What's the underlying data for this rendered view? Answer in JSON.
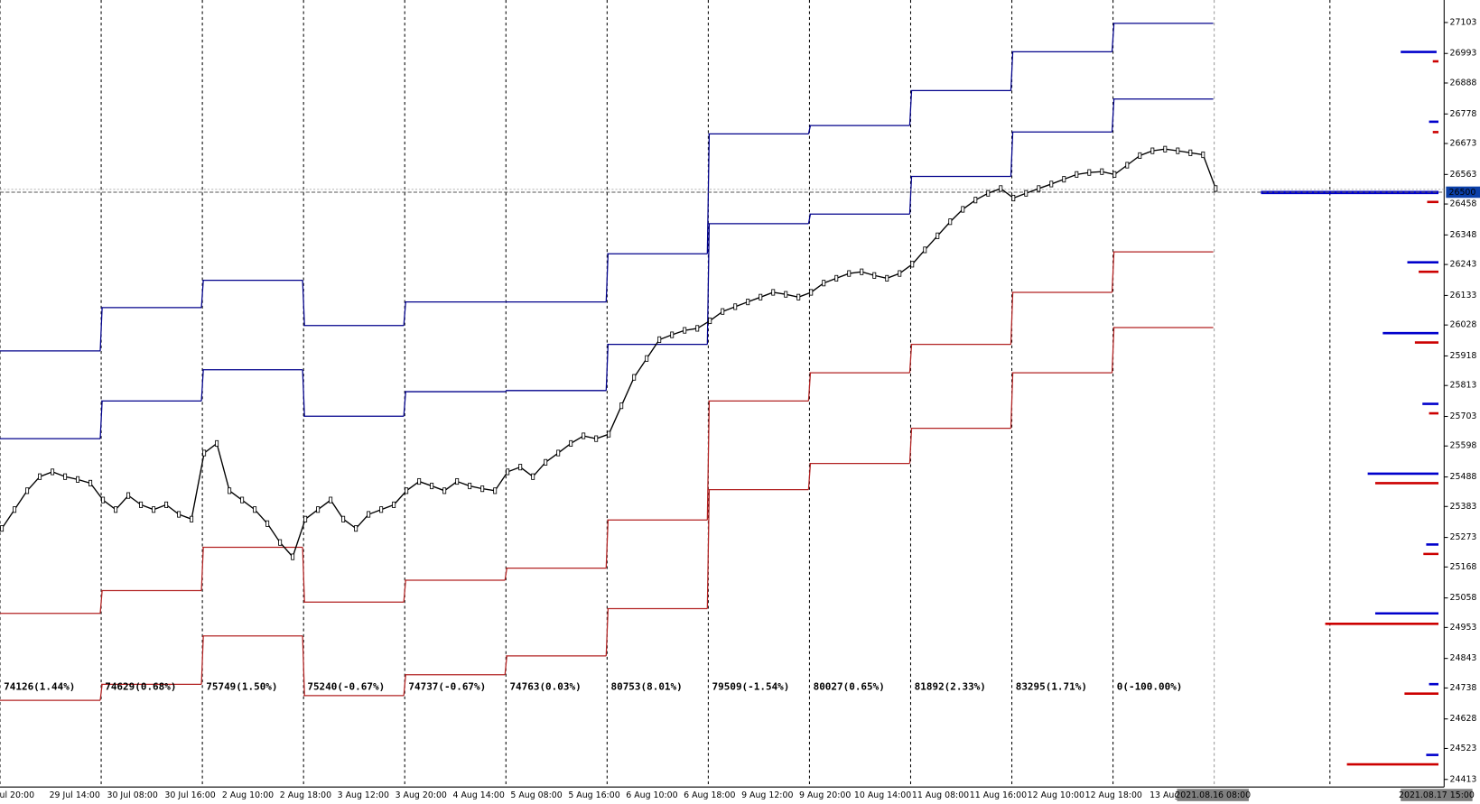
{
  "chart_data": {
    "type": "line",
    "ylim": [
      24386,
      27183
    ],
    "yticks": [
      27103,
      26993,
      26888,
      26778,
      26673,
      26563,
      26458,
      26348,
      26243,
      26133,
      26028,
      25918,
      25813,
      25703,
      25598,
      25488,
      25383,
      25273,
      25168,
      25058,
      24953,
      24843,
      24738,
      24628,
      24523,
      24413
    ],
    "current_price": 26500,
    "price_color": "#000000",
    "upper_color": "#00008b",
    "lower_color": "#b22222",
    "x_labels": [
      "ul 20:00",
      "29 Jul 14:00",
      "30 Jul 08:00",
      "30 Jul 16:00",
      "2 Aug 10:00",
      "2 Aug 18:00",
      "3 Aug 12:00",
      "3 Aug 20:00",
      "4 Aug 14:00",
      "5 Aug 08:00",
      "5 Aug 16:00",
      "6 Aug 10:00",
      "6 Aug 18:00",
      "9 Aug 12:00",
      "9 Aug 20:00",
      "10 Aug 14:00",
      "11 Aug 08:00",
      "11 Aug 16:00",
      "12 Aug 10:00",
      "12 Aug 18:00",
      "13 Aug 12"
    ],
    "cursor_labels": [
      "2021.08.16 08:00",
      "2021.08.17 15:00"
    ],
    "session_labels": [
      {
        "text": "74126(1.44%)",
        "color": "#008000"
      },
      {
        "text": "74629(0.68%)",
        "color": "#008000"
      },
      {
        "text": "75749(1.50%)",
        "color": "#008000"
      },
      {
        "text": "75240(-0.67%)",
        "color": "#e00000"
      },
      {
        "text": "74737(-0.67%)",
        "color": "#e00000"
      },
      {
        "text": "74763(0.03%)",
        "color": "#008000"
      },
      {
        "text": "80753(8.01%)",
        "color": "#008000"
      },
      {
        "text": "79509(-1.54%)",
        "color": "#e00000"
      },
      {
        "text": "80027(0.65%)",
        "color": "#008000"
      },
      {
        "text": "81892(2.33%)",
        "color": "#008000"
      },
      {
        "text": "83295(1.71%)",
        "color": "#008000"
      },
      {
        "text": "0(-100.00%)",
        "color": "#e00000"
      }
    ],
    "bands": [
      {
        "upper2": 25936,
        "upper1": 25624,
        "lower1": 25003,
        "lower2": 24694
      },
      {
        "upper2": 26090,
        "upper1": 25758,
        "lower1": 25084,
        "lower2": 24751
      },
      {
        "upper2": 26187,
        "upper1": 25869,
        "lower1": 25238,
        "lower2": 24923
      },
      {
        "upper2": 26026,
        "upper1": 25704,
        "lower1": 25043,
        "lower2": 24711
      },
      {
        "upper2": 26110,
        "upper1": 25791,
        "lower1": 25121,
        "lower2": 24785
      },
      {
        "upper2": 26110,
        "upper1": 25795,
        "lower1": 25164,
        "lower2": 24852
      },
      {
        "upper2": 26281,
        "upper1": 25959,
        "lower1": 25335,
        "lower2": 25020
      },
      {
        "upper2": 26707,
        "upper1": 26388,
        "lower1": 25758,
        "lower2": 25443
      },
      {
        "upper2": 26737,
        "upper1": 26422,
        "lower1": 25858,
        "lower2": 25536
      },
      {
        "upper2": 26861,
        "upper1": 26556,
        "lower1": 25959,
        "lower2": 25661
      },
      {
        "upper2": 26999,
        "upper1": 26714,
        "lower1": 26144,
        "lower2": 25858
      },
      {
        "upper2": 27100,
        "upper1": 26831,
        "lower1": 26288,
        "lower2": 26019
      }
    ],
    "close": [
      25305,
      25372,
      25439,
      25489,
      25506,
      25489,
      25479,
      25466,
      25406,
      25372,
      25422,
      25389,
      25372,
      25389,
      25355,
      25338,
      25573,
      25607,
      25439,
      25406,
      25372,
      25322,
      25255,
      25204,
      25338,
      25372,
      25406,
      25338,
      25305,
      25355,
      25372,
      25389,
      25439,
      25472,
      25456,
      25439,
      25472,
      25456,
      25446,
      25439,
      25506,
      25523,
      25489,
      25540,
      25573,
      25607,
      25634,
      25624,
      25640,
      25741,
      25842,
      25909,
      25976,
      25993,
      26009,
      26016,
      26043,
      26076,
      26093,
      26110,
      26127,
      26144,
      26137,
      26127,
      26144,
      26177,
      26194,
      26211,
      26217,
      26204,
      26194,
      26211,
      26244,
      26295,
      26345,
      26395,
      26439,
      26472,
      26496,
      26513,
      26479,
      26496,
      26513,
      26529,
      26546,
      26563,
      26570,
      26573,
      26563,
      26596,
      26630,
      26647,
      26653,
      26647,
      26640,
      26633,
      26513
    ]
  }
}
